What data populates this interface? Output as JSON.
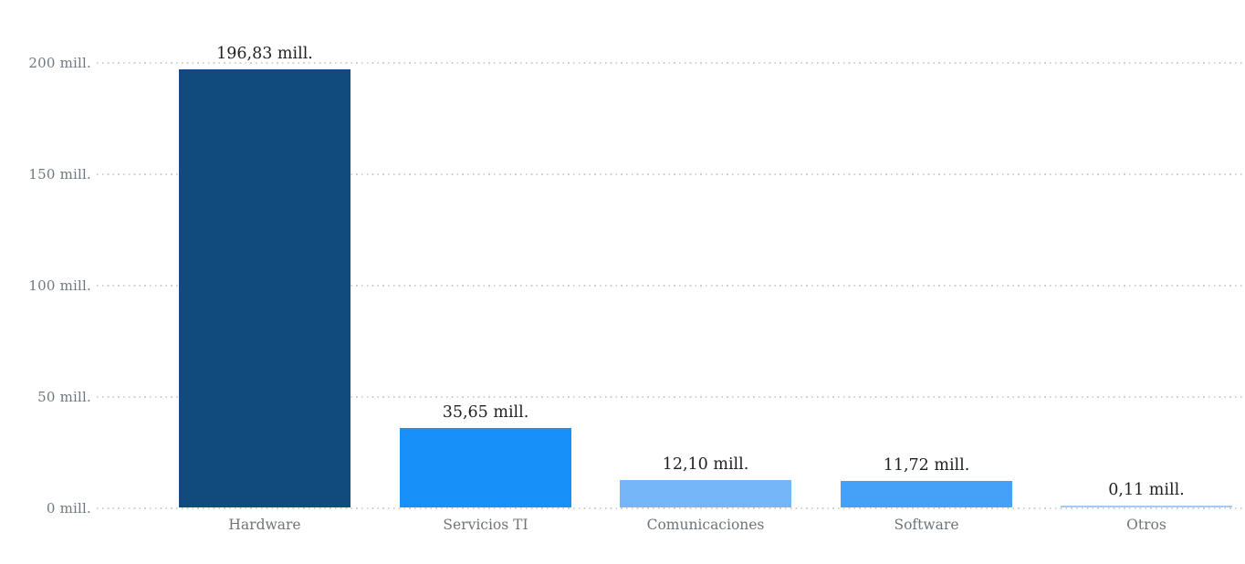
{
  "chart_data": {
    "type": "bar",
    "title": "",
    "xlabel": "",
    "ylabel": "",
    "unit_suffix": "mill.",
    "categories": [
      "Hardware",
      "Servicios TI",
      "Comunicaciones",
      "Software",
      "Otros"
    ],
    "values": [
      196.83,
      35.65,
      12.1,
      11.72,
      0.11
    ],
    "value_labels": [
      "196,83 mill.",
      "35,65 mill.",
      "12,10 mill.",
      "11,72 mill.",
      "0,11 mill."
    ],
    "bar_colors": [
      "#114a7d",
      "#1890fa",
      "#74b6f8",
      "#45a0f7",
      "#a3cbf1"
    ],
    "ylim": [
      0,
      200
    ],
    "yticks": [
      0,
      50,
      100,
      150,
      200
    ],
    "ytick_labels": [
      "0 mill.",
      "50 mill.",
      "100 mill.",
      "150 mill.",
      "200 mill."
    ],
    "grid": "horizontal-dotted",
    "legend": "none"
  },
  "colors": {
    "background": "#ffffff",
    "gridline": "#cdd1d4",
    "ytick_text": "#6f7880",
    "value_text": "#1f2022",
    "category_text": "#6e757a"
  }
}
